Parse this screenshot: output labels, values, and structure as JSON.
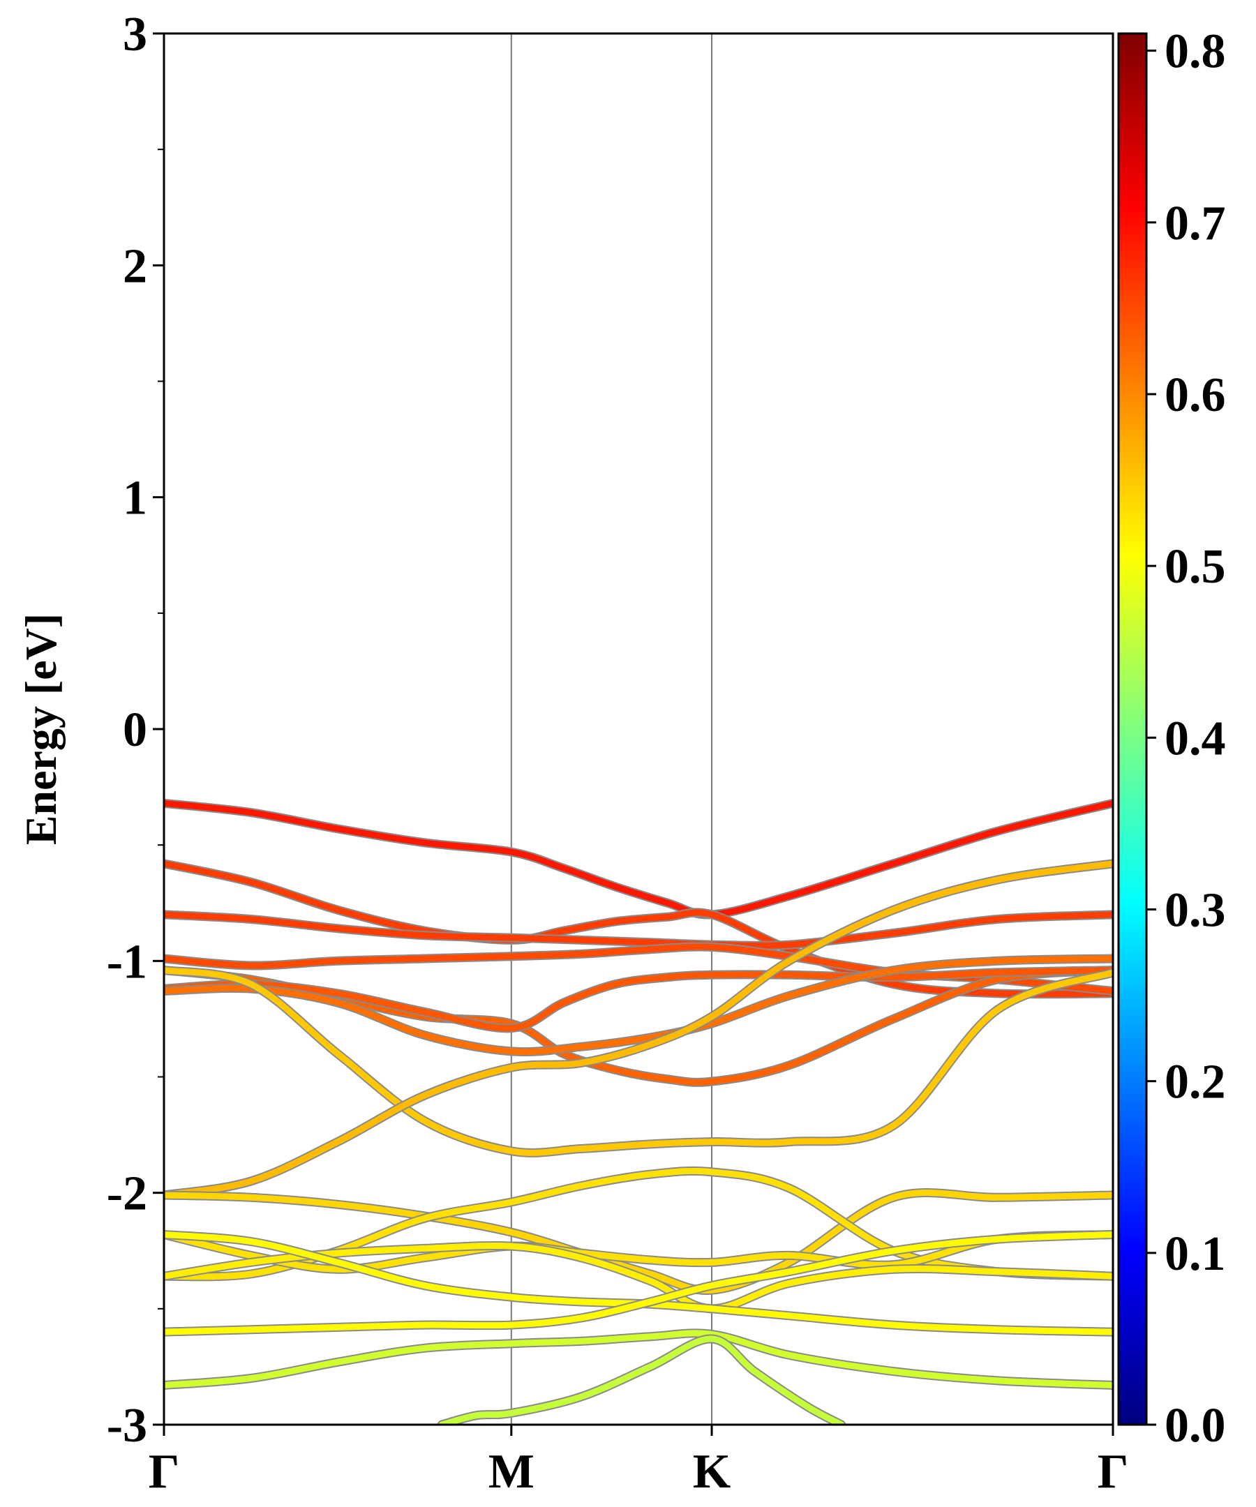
{
  "chart_data": {
    "type": "line",
    "ylabel": "Energy [eV]",
    "xlabel": "",
    "title": "",
    "ylim": [
      -3,
      3
    ],
    "yticks": [
      -3,
      -2,
      -1,
      0,
      1,
      2,
      3
    ],
    "ytick_labels": [
      "-3",
      "-2",
      "-1",
      "0",
      "1",
      "2",
      "3"
    ],
    "kpath_labels": [
      "Γ",
      "M",
      "K",
      "Γ"
    ],
    "kpath_positions": [
      0,
      1,
      1.577,
      2.732
    ],
    "xlim": [
      0,
      2.732
    ],
    "grid": false,
    "vertical_lines_at_kpoints": true,
    "colorbar": {
      "colormap": "jet",
      "range": [
        0.0,
        0.81
      ],
      "ticks": [
        0.0,
        0.1,
        0.2,
        0.3,
        0.4,
        0.5,
        0.6,
        0.7,
        0.8
      ],
      "tick_labels": [
        "0.0",
        "0.1",
        "0.2",
        "0.3",
        "0.4",
        "0.5",
        "0.6",
        "0.7",
        "0.8"
      ],
      "colors": [
        "#00007f",
        "#0000ff",
        "#007fff",
        "#00ffff",
        "#7fff7f",
        "#ffff00",
        "#ff7f00",
        "#ff0000",
        "#7f0000"
      ]
    },
    "series": [
      {
        "x": [
          0,
          0.25,
          0.5,
          0.75,
          1,
          1.15,
          1.3,
          1.45,
          1.577,
          1.8,
          2.1,
          2.4,
          2.732
        ],
        "y": [
          -0.32,
          -0.36,
          -0.43,
          -0.49,
          -0.53,
          -0.6,
          -0.68,
          -0.75,
          -0.8,
          -0.72,
          -0.58,
          -0.44,
          -0.32
        ],
        "weight": 0.69
      },
      {
        "x": [
          0,
          0.25,
          0.5,
          0.75,
          1,
          1.15,
          1.3,
          1.45,
          1.577,
          1.8,
          2.1,
          2.4,
          2.732
        ],
        "y": [
          -0.58,
          -0.66,
          -0.78,
          -0.87,
          -0.91,
          -0.87,
          -0.83,
          -0.81,
          -0.8,
          -0.95,
          -1.1,
          -1.14,
          -1.14
        ],
        "weight": 0.66
      },
      {
        "x": [
          0,
          0.25,
          0.5,
          0.75,
          1,
          1.2,
          1.4,
          1.577,
          1.8,
          2.1,
          2.4,
          2.732
        ],
        "y": [
          -0.8,
          -0.82,
          -0.86,
          -0.89,
          -0.9,
          -0.91,
          -0.92,
          -0.93,
          -0.93,
          -0.88,
          -0.82,
          -0.8
        ],
        "weight": 0.66
      },
      {
        "x": [
          0,
          0.25,
          0.5,
          0.75,
          1,
          1.2,
          1.4,
          1.577,
          1.8,
          2.1,
          2.4,
          2.732
        ],
        "y": [
          -0.99,
          -1.02,
          -1.0,
          -0.99,
          -0.98,
          -0.97,
          -0.95,
          -0.94,
          -0.98,
          -1.05,
          -1.08,
          -1.13
        ],
        "weight": 0.65
      },
      {
        "x": [
          0,
          0.25,
          0.5,
          0.75,
          1,
          1.15,
          1.3,
          1.45,
          1.577,
          1.8,
          2.1,
          2.4,
          2.732
        ],
        "y": [
          -1.04,
          -1.08,
          -1.16,
          -1.24,
          -1.27,
          -1.4,
          -1.47,
          -1.51,
          -1.52,
          -1.45,
          -1.25,
          -1.08,
          -1.04
        ],
        "weight": 0.63
      },
      {
        "x": [
          0,
          0.25,
          0.5,
          0.75,
          1,
          1.15,
          1.3,
          1.45,
          1.577,
          1.8,
          2.1,
          2.4,
          2.732
        ],
        "y": [
          -1.12,
          -1.1,
          -1.14,
          -1.22,
          -1.29,
          -1.18,
          -1.1,
          -1.07,
          -1.06,
          -1.06,
          -1.07,
          -1.05,
          -1.04
        ],
        "weight": 0.64
      },
      {
        "x": [
          0,
          0.25,
          0.5,
          0.75,
          1,
          1.2,
          1.4,
          1.577,
          1.8,
          2.1,
          2.4,
          2.732
        ],
        "y": [
          -1.13,
          -1.12,
          -1.18,
          -1.32,
          -1.39,
          -1.37,
          -1.33,
          -1.27,
          -1.15,
          -1.04,
          -1.0,
          -0.99
        ],
        "weight": 0.62
      },
      {
        "x": [
          0,
          0.25,
          0.5,
          0.75,
          1,
          1.2,
          1.4,
          1.577,
          1.8,
          2.1,
          2.4,
          2.732
        ],
        "y": [
          -1.04,
          -1.1,
          -1.4,
          -1.69,
          -1.82,
          -1.81,
          -1.79,
          -1.78,
          -1.78,
          -1.71,
          -1.21,
          -1.05
        ],
        "weight": 0.55
      },
      {
        "x": [
          0,
          0.25,
          0.5,
          0.75,
          1,
          1.2,
          1.4,
          1.577,
          1.8,
          2.1,
          2.4,
          2.732
        ],
        "y": [
          -2.01,
          -1.95,
          -1.78,
          -1.58,
          -1.46,
          -1.44,
          -1.36,
          -1.24,
          -1.0,
          -0.78,
          -0.65,
          -0.58
        ],
        "weight": 0.56
      },
      {
        "x": [
          0,
          0.25,
          0.5,
          0.75,
          1,
          1.2,
          1.4,
          1.577,
          1.8,
          2.1,
          2.4,
          2.732
        ],
        "y": [
          -2.01,
          -2.02,
          -2.05,
          -2.1,
          -2.17,
          -2.26,
          -2.35,
          -2.42,
          -2.3,
          -2.02,
          -2.02,
          -2.01
        ],
        "weight": 0.54
      },
      {
        "x": [
          0,
          0.25,
          0.5,
          0.75,
          1,
          1.2,
          1.4,
          1.577,
          1.8,
          2.1,
          2.4,
          2.732
        ],
        "y": [
          -2.36,
          -2.35,
          -2.25,
          -2.11,
          -2.04,
          -1.97,
          -1.92,
          -1.91,
          -1.98,
          -2.25,
          -2.34,
          -2.36
        ],
        "weight": 0.53
      },
      {
        "x": [
          0,
          0.25,
          0.5,
          0.75,
          1,
          1.2,
          1.4,
          1.577,
          1.8,
          2.1,
          2.4,
          2.732
        ],
        "y": [
          -2.18,
          -2.27,
          -2.33,
          -2.28,
          -2.23,
          -2.26,
          -2.29,
          -2.3,
          -2.27,
          -2.31,
          -2.2,
          -2.18
        ],
        "weight": 0.53
      },
      {
        "x": [
          0,
          0.25,
          0.5,
          0.75,
          1,
          1.2,
          1.4,
          1.577,
          1.8,
          2.1,
          2.4,
          2.732
        ],
        "y": [
          -2.36,
          -2.3,
          -2.26,
          -2.24,
          -2.23,
          -2.28,
          -2.38,
          -2.5,
          -2.39,
          -2.33,
          -2.34,
          -2.36
        ],
        "weight": 0.52
      },
      {
        "x": [
          0,
          0.25,
          0.5,
          0.75,
          1,
          1.2,
          1.4,
          1.577,
          1.8,
          2.1,
          2.4,
          2.732
        ],
        "y": [
          -2.18,
          -2.21,
          -2.3,
          -2.4,
          -2.45,
          -2.47,
          -2.48,
          -2.5,
          -2.53,
          -2.57,
          -2.59,
          -2.6
        ],
        "weight": 0.51
      },
      {
        "x": [
          0,
          0.25,
          0.5,
          0.75,
          1,
          1.2,
          1.4,
          1.577,
          1.8,
          2.1,
          2.4,
          2.732
        ],
        "y": [
          -2.6,
          -2.59,
          -2.58,
          -2.57,
          -2.57,
          -2.54,
          -2.47,
          -2.4,
          -2.34,
          -2.25,
          -2.2,
          -2.18
        ],
        "weight": 0.51
      },
      {
        "x": [
          0,
          0.25,
          0.5,
          0.75,
          1,
          1.2,
          1.4,
          1.577,
          1.8,
          2.1,
          2.4,
          2.732
        ],
        "y": [
          -2.83,
          -2.8,
          -2.73,
          -2.67,
          -2.65,
          -2.64,
          -2.62,
          -2.61,
          -2.7,
          -2.77,
          -2.81,
          -2.83
        ],
        "weight": 0.47
      },
      {
        "x": [
          0.8,
          0.9,
          1,
          1.2,
          1.4,
          1.577,
          1.7,
          1.85,
          1.95
        ],
        "y": [
          -3.0,
          -2.96,
          -2.95,
          -2.88,
          -2.75,
          -2.63,
          -2.77,
          -2.92,
          -3.0
        ],
        "weight": 0.46
      }
    ]
  }
}
